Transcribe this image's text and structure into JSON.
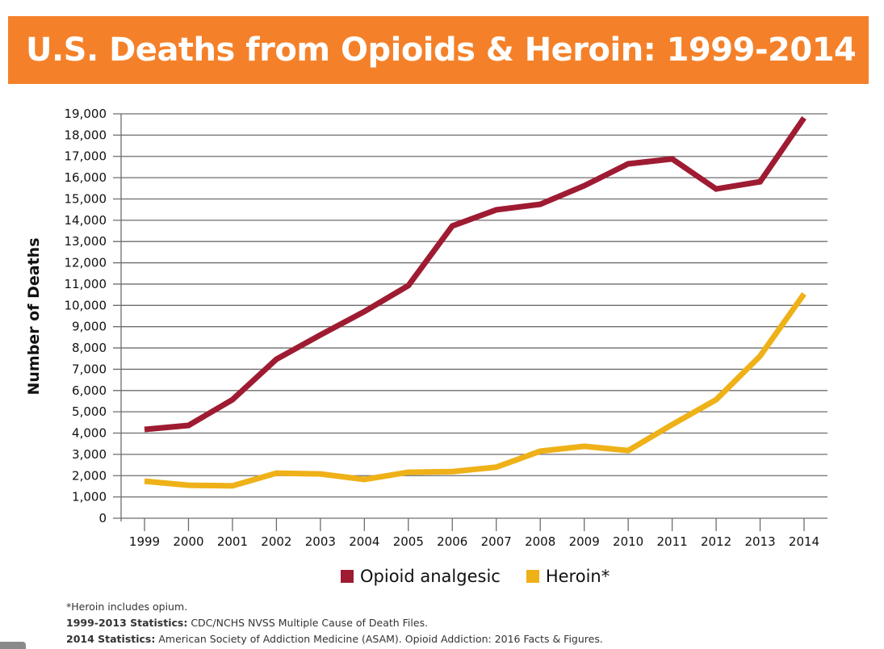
{
  "header": {
    "title": "U.S. Deaths from Opioids & Heroin: 1999-2014"
  },
  "colors": {
    "title_bg": "#f4812a",
    "opioid": "#9e1b32",
    "heroin": "#efb118",
    "grid": "#6d6d6d"
  },
  "chart_data": {
    "type": "line",
    "title": "U.S. Deaths from Opioids & Heroin: 1999-2014",
    "xlabel": "",
    "ylabel": "Number of Deaths",
    "ylim": [
      0,
      19000
    ],
    "grid": true,
    "legend_position": "bottom",
    "x": [
      "1999",
      "2000",
      "2001",
      "2002",
      "2003",
      "2004",
      "2005",
      "2006",
      "2007",
      "2008",
      "2009",
      "2010",
      "2011",
      "2012",
      "2013",
      "2014"
    ],
    "y_ticks": [
      "0",
      "1,000",
      "2,000",
      "3,000",
      "4,000",
      "5,000",
      "6,000",
      "7,000",
      "8,000",
      "9,000",
      "10,000",
      "11,000",
      "12,000",
      "13,000",
      "14,000",
      "15,000",
      "16,000",
      "17,000",
      "18,000",
      "19,000"
    ],
    "y_tick_values": [
      0,
      1000,
      2000,
      3000,
      4000,
      5000,
      6000,
      7000,
      8000,
      9000,
      10000,
      11000,
      12000,
      13000,
      14000,
      15000,
      16000,
      17000,
      18000,
      19000
    ],
    "series": [
      {
        "name": "Opioid analgesic",
        "color": "#9e1b32",
        "values": [
          4170,
          4360,
          5570,
          7470,
          8610,
          9710,
          10930,
          13730,
          14490,
          14750,
          15620,
          16650,
          16880,
          15470,
          15810,
          18810
        ]
      },
      {
        "name": "Heroin*",
        "color": "#efb118",
        "values": [
          1740,
          1550,
          1520,
          2120,
          2080,
          1820,
          2160,
          2190,
          2400,
          3150,
          3380,
          3180,
          4400,
          5570,
          7620,
          10540
        ]
      }
    ]
  },
  "legend": [
    {
      "label": "Opioid analgesic",
      "color": "#9e1b32"
    },
    {
      "label": "Heroin*",
      "color": "#efb118"
    }
  ],
  "notes": {
    "line1": "*Heroin includes opium.",
    "line2_bold": "1999-2013 Statistics:",
    "line2_text": " CDC/NCHS NVSS Multiple Cause of Death Files.",
    "line3_bold": "2014 Statistics:",
    "line3_text": " American Society of Addiction Medicine (ASAM). Opioid Addiction: 2016 Facts & Figures."
  }
}
